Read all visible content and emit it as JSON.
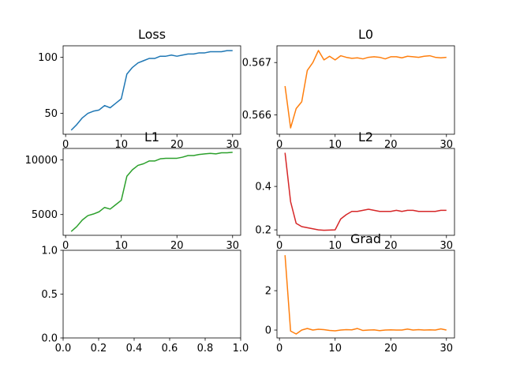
{
  "chart_data": [
    {
      "type": "line",
      "title": "Loss",
      "color": "#1f77b4",
      "xlim": [
        -0.45,
        31.45
      ],
      "ylim": [
        31.4,
        110.3
      ],
      "xticks": [
        0,
        10,
        20,
        30
      ],
      "yticks": [
        50,
        100
      ],
      "x": [
        1,
        2,
        3,
        4,
        5,
        6,
        7,
        8,
        9,
        10,
        11,
        12,
        13,
        14,
        15,
        16,
        17,
        18,
        19,
        20,
        21,
        22,
        23,
        24,
        25,
        26,
        27,
        28,
        29,
        30
      ],
      "y": [
        35,
        40,
        46,
        50,
        52,
        53,
        57,
        55,
        59,
        63,
        85,
        91,
        95,
        97,
        99,
        99,
        101,
        101,
        102,
        101,
        102,
        103,
        103,
        104,
        104,
        105,
        105,
        105,
        106,
        106
      ]
    },
    {
      "type": "line",
      "title": "L0",
      "color": "#ff7f0e",
      "xlim": [
        -0.45,
        31.45
      ],
      "ylim": [
        0.56563,
        0.56732
      ],
      "xticks": [
        0,
        10,
        20,
        30
      ],
      "yticks": [
        0.566,
        0.567
      ],
      "ytick_labels": [
        "0.566",
        "0.567"
      ],
      "x": [
        1,
        2,
        3,
        4,
        5,
        6,
        7,
        8,
        9,
        10,
        11,
        12,
        13,
        14,
        15,
        16,
        17,
        18,
        19,
        20,
        21,
        22,
        23,
        24,
        25,
        26,
        27,
        28,
        29,
        30
      ],
      "y": [
        0.56655,
        0.56575,
        0.56612,
        0.56625,
        0.56685,
        0.567,
        0.56723,
        0.56705,
        0.56712,
        0.56705,
        0.56713,
        0.5671,
        0.56708,
        0.56709,
        0.56707,
        0.5671,
        0.56711,
        0.5671,
        0.56707,
        0.56711,
        0.56711,
        0.56709,
        0.56712,
        0.56711,
        0.5671,
        0.56712,
        0.56713,
        0.5671,
        0.56709,
        0.5671
      ]
    },
    {
      "type": "line",
      "title": "L1",
      "color": "#2ca02c",
      "xlim": [
        -0.45,
        31.45
      ],
      "ylim": [
        3100,
        11050
      ],
      "xticks": [
        0,
        10,
        20,
        30
      ],
      "yticks": [
        5000,
        10000
      ],
      "x": [
        1,
        2,
        3,
        4,
        5,
        6,
        7,
        8,
        9,
        10,
        11,
        12,
        13,
        14,
        15,
        16,
        17,
        18,
        19,
        20,
        21,
        22,
        23,
        24,
        25,
        26,
        27,
        28,
        29,
        30
      ],
      "y": [
        3450,
        3900,
        4500,
        4900,
        5050,
        5250,
        5650,
        5500,
        5900,
        6300,
        8500,
        9100,
        9500,
        9650,
        9900,
        9900,
        10100,
        10150,
        10150,
        10150,
        10250,
        10400,
        10400,
        10500,
        10550,
        10600,
        10550,
        10650,
        10650,
        10700
      ]
    },
    {
      "type": "line",
      "title": "L2",
      "color": "#d62728",
      "xlim": [
        -0.45,
        31.45
      ],
      "ylim": [
        0.175,
        0.575
      ],
      "xticks": [
        0,
        10,
        20,
        30
      ],
      "yticks": [
        0.2,
        0.4
      ],
      "ytick_labels": [
        "0.2",
        "0.4"
      ],
      "x": [
        1,
        2,
        3,
        4,
        5,
        6,
        7,
        8,
        9,
        10,
        11,
        12,
        13,
        14,
        15,
        16,
        17,
        18,
        19,
        20,
        21,
        22,
        23,
        24,
        25,
        26,
        27,
        28,
        29,
        30
      ],
      "y": [
        0.555,
        0.33,
        0.23,
        0.215,
        0.21,
        0.205,
        0.2,
        0.198,
        0.199,
        0.2,
        0.25,
        0.27,
        0.285,
        0.285,
        0.29,
        0.295,
        0.29,
        0.285,
        0.285,
        0.285,
        0.29,
        0.285,
        0.29,
        0.29,
        0.285,
        0.285,
        0.285,
        0.285,
        0.29,
        0.29
      ]
    },
    {
      "type": "line",
      "title": "",
      "empty": true,
      "xlim": [
        0,
        1
      ],
      "ylim": [
        0,
        1
      ],
      "xticks": [
        0,
        0.2,
        0.4,
        0.6,
        0.8,
        1.0
      ],
      "xtick_labels": [
        "0.0",
        "0.2",
        "0.4",
        "0.6",
        "0.8",
        "1.0"
      ],
      "yticks": [
        0,
        0.5,
        1.0
      ],
      "ytick_labels": [
        "0.0",
        "0.5",
        "1.0"
      ]
    },
    {
      "type": "line",
      "title": "Grad",
      "color": "#ff7f0e",
      "xlim": [
        -0.45,
        31.45
      ],
      "ylim": [
        -0.4,
        4.05
      ],
      "xticks": [
        0,
        10,
        20,
        30
      ],
      "yticks": [
        0,
        2
      ],
      "x": [
        1,
        2,
        3,
        4,
        5,
        6,
        7,
        8,
        9,
        10,
        11,
        12,
        13,
        14,
        15,
        16,
        17,
        18,
        19,
        20,
        21,
        22,
        23,
        24,
        25,
        26,
        27,
        28,
        29,
        30
      ],
      "y": [
        3.8,
        -0.05,
        -0.2,
        0.0,
        0.08,
        0.0,
        0.04,
        0.02,
        -0.02,
        -0.04,
        0.0,
        0.02,
        0.01,
        0.08,
        -0.02,
        0.0,
        0.01,
        -0.03,
        0.0,
        0.01,
        0.0,
        0.0,
        0.05,
        0.0,
        0.02,
        0.0,
        0.01,
        0.0,
        0.06,
        0.0
      ]
    }
  ]
}
